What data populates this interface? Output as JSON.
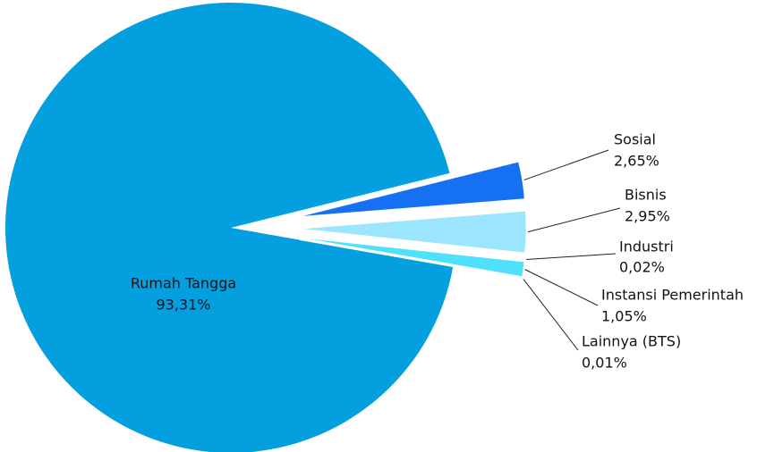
{
  "chart_data": {
    "type": "pie",
    "categories": [
      "Rumah Tangga",
      "Sosial",
      "Bisnis",
      "Industri",
      "Instansi Pemerintah",
      "Lainnya (BTS)"
    ],
    "values": [
      93.31,
      2.65,
      2.95,
      0.02,
      1.05,
      0.01
    ],
    "value_labels": [
      "93,31%",
      "2,65%",
      "2,95%",
      "0,02%",
      "1,05%",
      "0,01%"
    ],
    "colors": [
      "#049fdf",
      "#1670f2",
      "#9be6fe",
      "#1e5fa6",
      "#4fe0fb",
      "#4a50e0"
    ]
  }
}
